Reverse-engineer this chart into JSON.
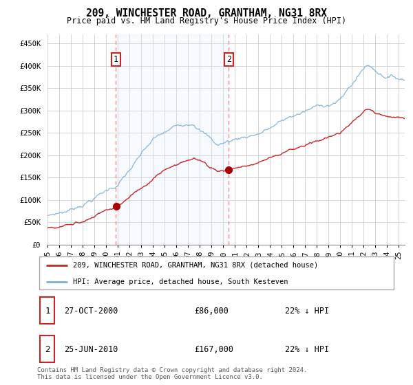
{
  "title": "209, WINCHESTER ROAD, GRANTHAM, NG31 8RX",
  "subtitle": "Price paid vs. HM Land Registry's House Price Index (HPI)",
  "ylabel_ticks": [
    "£0",
    "£50K",
    "£100K",
    "£150K",
    "£200K",
    "£250K",
    "£300K",
    "£350K",
    "£400K",
    "£450K"
  ],
  "ytick_values": [
    0,
    50000,
    100000,
    150000,
    200000,
    250000,
    300000,
    350000,
    400000,
    450000
  ],
  "ylim": [
    0,
    470000
  ],
  "xlim_start": 1995.0,
  "xlim_end": 2025.5,
  "sale1_year": 2000.82,
  "sale1_price": 86000,
  "sale2_year": 2010.48,
  "sale2_price": 167000,
  "vline_color": "#ff8888",
  "shade_color": "#ddeeff",
  "sale_dot_color": "#aa0000",
  "hpi_line_color": "#7ab0d4",
  "price_line_color": "#cc2222",
  "legend_label1": "209, WINCHESTER ROAD, GRANTHAM, NG31 8RX (detached house)",
  "legend_label2": "HPI: Average price, detached house, South Kesteven",
  "footer": "Contains HM Land Registry data © Crown copyright and database right 2024.\nThis data is licensed under the Open Government Licence v3.0.",
  "table_rows": [
    {
      "num": "1",
      "date": "27-OCT-2000",
      "price": "£86,000",
      "pct": "22% ↓ HPI"
    },
    {
      "num": "2",
      "date": "25-JUN-2010",
      "price": "£167,000",
      "pct": "22% ↓ HPI"
    }
  ],
  "background_color": "#ffffff",
  "grid_color": "#cccccc"
}
